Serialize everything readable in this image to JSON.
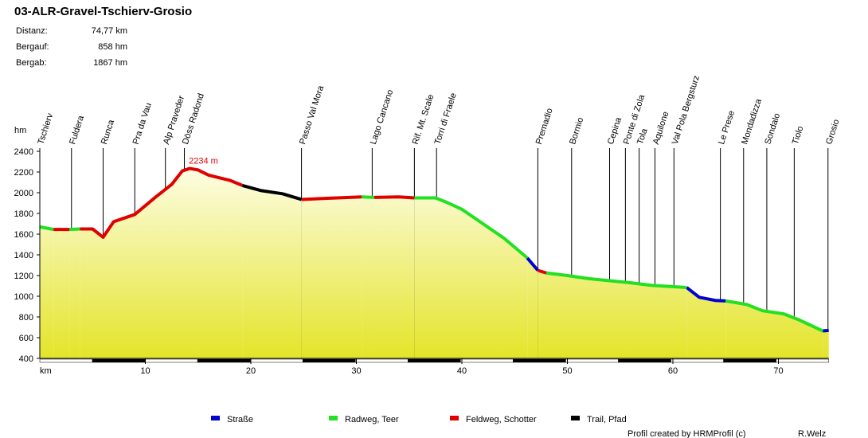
{
  "chart_data": {
    "type": "line",
    "title": "03-ALR-Gravel-Tschierv-Grosio",
    "stats": [
      [
        "Distanz:",
        "74,77 km"
      ],
      [
        "Bergauf:",
        "858 hm"
      ],
      [
        "Bergab:",
        "1867 hm"
      ]
    ],
    "y_label": "hm",
    "x_label": "km",
    "xlim": [
      0,
      74.77
    ],
    "xticks": [
      10,
      20,
      30,
      40,
      50,
      60,
      70
    ],
    "ylim": [
      400,
      2400
    ],
    "yticks": [
      400,
      600,
      800,
      1000,
      1200,
      1400,
      1600,
      1800,
      2000,
      2200,
      2400
    ],
    "waypoints": [
      {
        "name": "Tschierv",
        "x": 0
      },
      {
        "name": "Fuldera",
        "x": 3.0
      },
      {
        "name": "Runca",
        "x": 6.0
      },
      {
        "name": "Pra da Vau",
        "x": 9.0
      },
      {
        "name": "Alp Praveder",
        "x": 11.9
      },
      {
        "name": "Döss Radond",
        "x": 13.7
      },
      {
        "name": "Passo Val Mora",
        "x": 24.8
      },
      {
        "name": "Lago Cancano",
        "x": 31.5
      },
      {
        "name": "Rif. Mt. Scale",
        "x": 35.5
      },
      {
        "name": "Torri di Fraele",
        "x": 37.6
      },
      {
        "name": "Premadio",
        "x": 47.2
      },
      {
        "name": "Bormio",
        "x": 50.4
      },
      {
        "name": "Cepina",
        "x": 54.0
      },
      {
        "name": "Ponte di Zola",
        "x": 55.5
      },
      {
        "name": "Tola",
        "x": 56.8
      },
      {
        "name": "Aquilone",
        "x": 58.3
      },
      {
        "name": "Val Pola Bergsturz",
        "x": 60.1
      },
      {
        "name": "Le Prese",
        "x": 64.5
      },
      {
        "name": "Mondadizza",
        "x": 66.7
      },
      {
        "name": "Sondalo",
        "x": 68.9
      },
      {
        "name": "Tiolo",
        "x": 71.5
      },
      {
        "name": "Grosio",
        "x": 74.7
      }
    ],
    "peak": {
      "x": 14.2,
      "value": 2234,
      "label": "2234 m"
    },
    "series": [
      {
        "name": "Straße",
        "color": "#0000d0",
        "x": [
          46.2,
          47.2,
          null,
          61.3,
          62.5,
          64,
          65,
          null,
          74.2,
          74.77
        ],
        "values": [
          1370,
          1250,
          null,
          1085,
          990,
          960,
          955,
          null,
          665,
          670
        ]
      },
      {
        "name": "Radweg, Teer",
        "color": "#22e022",
        "x": [
          0,
          1.3,
          null,
          2.8,
          3.8,
          null,
          30.5,
          31.7,
          null,
          35.5,
          37.5,
          38.5,
          40,
          42,
          44,
          46.2,
          null,
          48,
          50,
          52,
          54,
          56,
          58,
          61.3,
          null,
          65,
          67,
          68.5,
          70.5,
          72,
          74.2
        ],
        "values": [
          1670,
          1645,
          null,
          1645,
          1650,
          null,
          1960,
          1955,
          null,
          1950,
          1950,
          1910,
          1840,
          1700,
          1560,
          1370,
          null,
          1225,
          1200,
          1170,
          1150,
          1130,
          1105,
          1085,
          null,
          955,
          920,
          860,
          830,
          770,
          665
        ]
      },
      {
        "name": "Feldweg, Schotter",
        "color": "#e00000",
        "x": [
          1.3,
          2.8,
          null,
          3.8,
          5,
          6,
          7,
          9,
          11,
          12.5,
          13.5,
          14.2,
          15,
          16,
          18,
          19.2,
          null,
          24.8,
          27,
          30.5,
          null,
          31.7,
          34,
          35.5,
          null,
          47.2,
          48
        ],
        "values": [
          1645,
          1645,
          null,
          1650,
          1650,
          1570,
          1720,
          1790,
          1960,
          2080,
          2210,
          2234,
          2220,
          2170,
          2120,
          2070,
          null,
          1935,
          1945,
          1960,
          null,
          1955,
          1960,
          1950,
          null,
          1250,
          1225
        ]
      },
      {
        "name": "Trail, Pfad",
        "color": "#000000",
        "x": [
          19.2,
          21,
          23,
          24.8
        ],
        "values": [
          2070,
          2020,
          1990,
          1935
        ]
      }
    ],
    "credit": "Profil created by HRMProfil (c)",
    "author": "R.Welz"
  }
}
